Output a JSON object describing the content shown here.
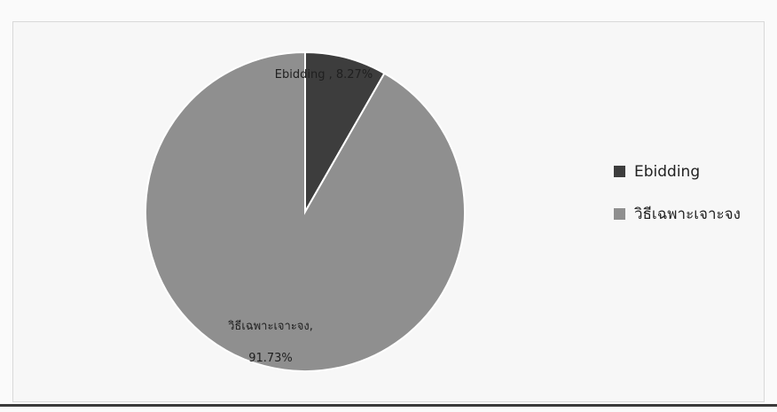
{
  "chart_data": {
    "type": "pie",
    "slices": [
      {
        "name": "Ebidding",
        "value": 8.27,
        "color": "#3d3d3d",
        "data_label": "Ebidding , 8.27%",
        "data_label_lines": [
          "Ebidding , 8.27%"
        ]
      },
      {
        "name": "วิธีเฉพาะเจาะจง",
        "value": 91.73,
        "color": "#8f8f8f",
        "data_label": "วิธีเฉพาะเจาะจง, 91.73%",
        "data_label_lines": [
          "วิธีเฉพาะเจาะจง,",
          "91.73%"
        ]
      }
    ],
    "legend": {
      "placement": "right",
      "entries": [
        "Ebidding",
        "วิธีเฉพาะเจาะจง"
      ]
    }
  },
  "colors": {
    "slice_dark": "#3d3d3d",
    "slice_light": "#8f8f8f",
    "separator": "#ffffff"
  }
}
